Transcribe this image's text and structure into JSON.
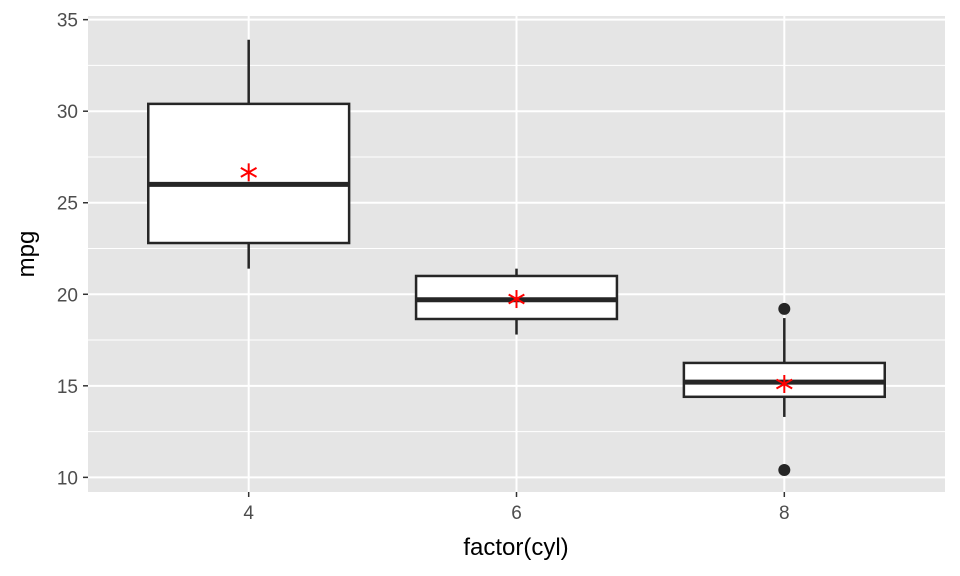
{
  "chart_data": {
    "type": "boxplot",
    "title": "",
    "xlabel": "factor(cyl)",
    "ylabel": "mpg",
    "ylim": [
      9.2,
      35.2
    ],
    "yticks": [
      10,
      15,
      20,
      25,
      30,
      35
    ],
    "categories": [
      "4",
      "6",
      "8"
    ],
    "boxes": [
      {
        "category": "4",
        "whisker_low": 21.4,
        "q1": 22.8,
        "median": 26.0,
        "q3": 30.4,
        "whisker_high": 33.9,
        "mean": 26.66,
        "outliers": []
      },
      {
        "category": "6",
        "whisker_low": 17.8,
        "q1": 18.65,
        "median": 19.7,
        "q3": 21.0,
        "whisker_high": 21.4,
        "mean": 19.74,
        "outliers": []
      },
      {
        "category": "8",
        "whisker_low": 13.3,
        "q1": 14.4,
        "median": 15.2,
        "q3": 16.25,
        "whisker_high": 18.7,
        "mean": 15.1,
        "outliers": [
          19.2,
          10.4
        ]
      }
    ],
    "grid": true,
    "legend": "none",
    "colors": {
      "panel": "#e5e5e5",
      "grid": "#ffffff",
      "box_fill": "#ffffff",
      "box_stroke": "#262626",
      "mean_marker": "#ff0000",
      "outlier": "#262626"
    }
  }
}
